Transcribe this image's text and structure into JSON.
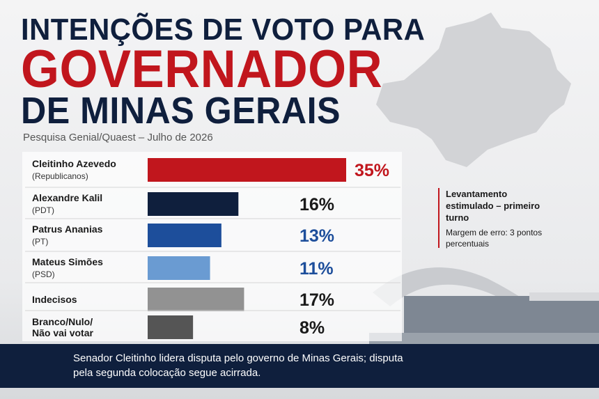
{
  "chart_data": {
    "type": "bar",
    "title_lines": [
      "INTENÇÕES DE VOTO PARA",
      "GOVERNADOR",
      "DE MINAS GERAIS"
    ],
    "subtitle": "Pesquisa Genial/Quaest – Julho de 2026",
    "categories": [
      "Cleitinho Azevedo",
      "Alexandre Kalil",
      "Patrus Ananias",
      "Mateus Simões",
      "Indecisos",
      "Branco/Nulo/ Não vai votar"
    ],
    "parties": [
      "(Republicanos)",
      "(PDT)",
      "(PT)",
      "(PSD)",
      null,
      null
    ],
    "values": [
      35,
      16,
      13,
      11,
      17,
      8
    ],
    "value_labels": [
      "35%",
      "16%",
      "13%",
      "11%",
      "17%",
      "8%"
    ],
    "colors": [
      "#c1161d",
      "#0f1f3d",
      "#1d4e9b",
      "#6a9bd2",
      "#929292",
      "#555555"
    ],
    "value_label_colors": [
      "#c1161d",
      "#1a1a1a",
      "#1d4e9b",
      "#1d4e9b",
      "#1a1a1a",
      "#1a1a1a"
    ],
    "note_title": "Levantamento estimulado – primeiro turno",
    "note_text": "Margem de erro: 3 pontos percentuais",
    "footer": "Senador Cleitinho lidera disputa pelo governo de Minas Gerais; disputa pela segunda colocação segue acirrada."
  }
}
